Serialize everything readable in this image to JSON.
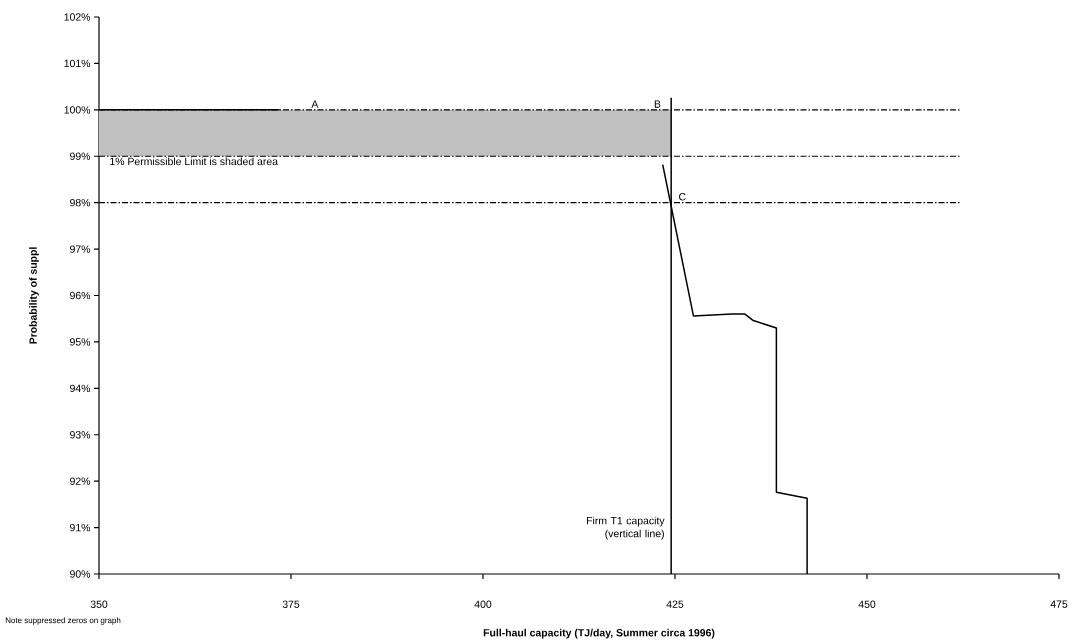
{
  "chart_data": {
    "type": "line",
    "xlabel": "Full-haul capacity (TJ/day, Summer circa 1996)",
    "ylabel": "Probability of suppl",
    "xlim": [
      350,
      475
    ],
    "xticks": [
      350,
      375,
      400,
      425,
      450,
      475
    ],
    "ylim": [
      90,
      102
    ],
    "yticks": [
      {
        "value": 90,
        "label": "90%"
      },
      {
        "value": 91,
        "label": "91%"
      },
      {
        "value": 92,
        "label": "92%"
      },
      {
        "value": 93,
        "label": "93%"
      },
      {
        "value": 94,
        "label": "94%"
      },
      {
        "value": 95,
        "label": "95%"
      },
      {
        "value": 96,
        "label": "96%"
      },
      {
        "value": 97,
        "label": "97%"
      },
      {
        "value": 98,
        "label": "98%"
      },
      {
        "value": 99,
        "label": "99%"
      },
      {
        "value": 100,
        "label": "100%"
      },
      {
        "value": 101,
        "label": "101%"
      },
      {
        "value": 102,
        "label": "102%"
      }
    ],
    "series": [
      {
        "color": "#000000",
        "x": [
          350,
          373.5,
          422.4,
          423.4,
          427.4,
          432.4,
          434.1,
          435.2,
          438.2,
          438.2,
          442.2,
          442.2
        ],
        "values": [
          100,
          100,
          null,
          98.82,
          95.56,
          95.6,
          95.6,
          95.46,
          95.3,
          91.76,
          91.63,
          90
        ]
      }
    ],
    "ref_lines": [
      {
        "axis": "x",
        "value": 424.5,
        "label": "Firm T1 capacity (vertical line)",
        "color": "#000000",
        "line_style": "solid"
      },
      {
        "axis": "y",
        "value": 100,
        "color": "#000000",
        "line_style": "dashed"
      },
      {
        "axis": "y",
        "value": 99,
        "color": "#000000",
        "line_style": "dashed"
      },
      {
        "axis": "y",
        "value": 98,
        "color": "#000000",
        "line_style": "dashed"
      }
    ],
    "bands": [
      {
        "axis": "y",
        "from": 99,
        "to": 100,
        "label": "1% Permissible Limit is shaded area",
        "color": "#c0c0c0"
      }
    ],
    "annotations": [
      {
        "text": "A",
        "x": 377.5,
        "y": 100
      },
      {
        "text": "B",
        "x": 422.1,
        "y": 100
      },
      {
        "text": "C",
        "x": 425.3,
        "y": 98
      },
      "Note suppressed zeros on graph"
    ],
    "marker": "none",
    "line_style": "solid"
  }
}
